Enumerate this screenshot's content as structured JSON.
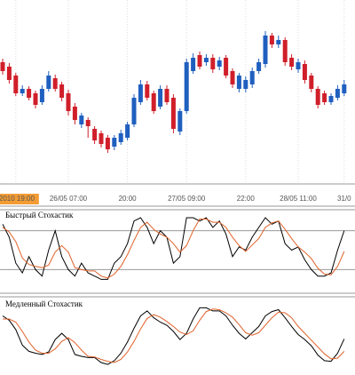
{
  "chart_data": [
    {
      "type": "candlestick",
      "categories": [
        null,
        null,
        "/2010 19:00",
        null,
        null,
        null,
        null,
        null,
        null,
        null,
        "26/05 07:00",
        null,
        null,
        null,
        null,
        null,
        null,
        null,
        null,
        "20:00",
        null,
        null,
        null,
        null,
        null,
        null,
        null,
        null,
        "27/05 09:00",
        null,
        null,
        null,
        null,
        null,
        null,
        null,
        null,
        "22:00",
        null,
        null,
        null,
        null,
        null,
        null,
        null,
        "28/05 11:00",
        null,
        null,
        null,
        null,
        null,
        null,
        "31/0"
      ],
      "open": [
        130,
        125,
        115,
        95,
        100,
        95,
        85,
        100,
        112,
        105,
        95,
        80,
        60,
        65,
        55,
        50,
        45,
        35,
        40,
        45,
        60,
        85,
        105,
        95,
        80,
        100,
        90,
        52,
        75,
        120,
        138,
        130,
        135,
        125,
        135,
        120,
        100,
        100,
        105,
        120,
        128,
        160,
        150,
        155,
        135,
        122,
        128,
        115,
        100,
        95,
        85,
        90,
        95
      ],
      "high": [
        134,
        129,
        118,
        104,
        103,
        98,
        104,
        120,
        116,
        108,
        99,
        84,
        73,
        68,
        58,
        53,
        48,
        48,
        54,
        63,
        94,
        110,
        109,
        98,
        104,
        104,
        94,
        78,
        134,
        140,
        142,
        139,
        139,
        136,
        138,
        123,
        118,
        114,
        124,
        134,
        165,
        163,
        160,
        158,
        139,
        134,
        132,
        118,
        103,
        98,
        95,
        104,
        110
      ],
      "low": [
        116,
        106,
        92,
        92,
        87,
        78,
        82,
        97,
        97,
        86,
        70,
        60,
        56,
        45,
        38,
        34,
        28,
        31,
        37,
        42,
        57,
        82,
        87,
        72,
        77,
        82,
        50,
        48,
        72,
        117,
        122,
        126,
        118,
        121,
        112,
        101,
        96,
        96,
        101,
        117,
        124,
        146,
        146,
        126,
        121,
        118,
        106,
        96,
        78,
        82,
        82,
        87,
        92
      ],
      "close": [
        120,
        110,
        95,
        100,
        90,
        82,
        100,
        115,
        100,
        90,
        75,
        65,
        70,
        58,
        42,
        38,
        32,
        45,
        50,
        60,
        90,
        105,
        90,
        75,
        100,
        85,
        55,
        75,
        130,
        135,
        125,
        135,
        122,
        132,
        115,
        105,
        115,
        110,
        120,
        130,
        160,
        150,
        155,
        130,
        125,
        130,
        110,
        100,
        82,
        85,
        92,
        100,
        105
      ],
      "up_color": "#1f5fbf",
      "down_color": "#d01f2a",
      "ylim": [
        0,
        200
      ]
    },
    {
      "type": "line",
      "title": "Быстрый Стохастик",
      "series": [
        {
          "color": "#000000",
          "values": [
            90,
            70,
            30,
            15,
            40,
            20,
            10,
            50,
            80,
            40,
            20,
            10,
            30,
            15,
            10,
            5,
            5,
            30,
            40,
            60,
            95,
            100,
            85,
            60,
            80,
            70,
            30,
            40,
            100,
            100,
            95,
            100,
            85,
            95,
            75,
            40,
            55,
            50,
            70,
            85,
            100,
            90,
            95,
            60,
            50,
            55,
            35,
            20,
            10,
            10,
            15,
            50,
            80
          ]
        },
        {
          "color": "#e0622a",
          "values": [
            85,
            78,
            63,
            38,
            28,
            25,
            23,
            27,
            47,
            57,
            47,
            23,
            20,
            18,
            18,
            10,
            7,
            13,
            25,
            43,
            65,
            85,
            93,
            82,
            75,
            70,
            60,
            47,
            57,
            80,
            98,
            98,
            93,
            93,
            85,
            70,
            57,
            48,
            58,
            68,
            85,
            92,
            95,
            82,
            68,
            55,
            47,
            37,
            22,
            13,
            12,
            25,
            48
          ]
        }
      ],
      "levels": [
        20,
        80
      ],
      "ylim": [
        0,
        100
      ]
    },
    {
      "type": "line",
      "title": "Медленный Стохастик",
      "series": [
        {
          "color": "#000000",
          "values": [
            85,
            78,
            63,
            38,
            28,
            25,
            23,
            27,
            47,
            57,
            47,
            23,
            20,
            18,
            18,
            10,
            7,
            13,
            25,
            43,
            65,
            85,
            93,
            82,
            75,
            70,
            60,
            47,
            57,
            80,
            98,
            98,
            93,
            93,
            85,
            70,
            57,
            48,
            58,
            68,
            85,
            92,
            95,
            82,
            68,
            55,
            47,
            37,
            22,
            13,
            12,
            25,
            48
          ]
        },
        {
          "color": "#e0622a",
          "values": [
            80,
            80,
            75,
            60,
            43,
            30,
            25,
            25,
            32,
            44,
            50,
            42,
            30,
            20,
            19,
            15,
            12,
            10,
            15,
            27,
            44,
            64,
            81,
            87,
            83,
            76,
            68,
            59,
            55,
            61,
            78,
            92,
            96,
            95,
            90,
            83,
            71,
            58,
            54,
            58,
            70,
            82,
            91,
            90,
            82,
            68,
            57,
            46,
            35,
            24,
            16,
            17,
            28
          ]
        }
      ],
      "ylim": [
        0,
        100
      ]
    }
  ]
}
